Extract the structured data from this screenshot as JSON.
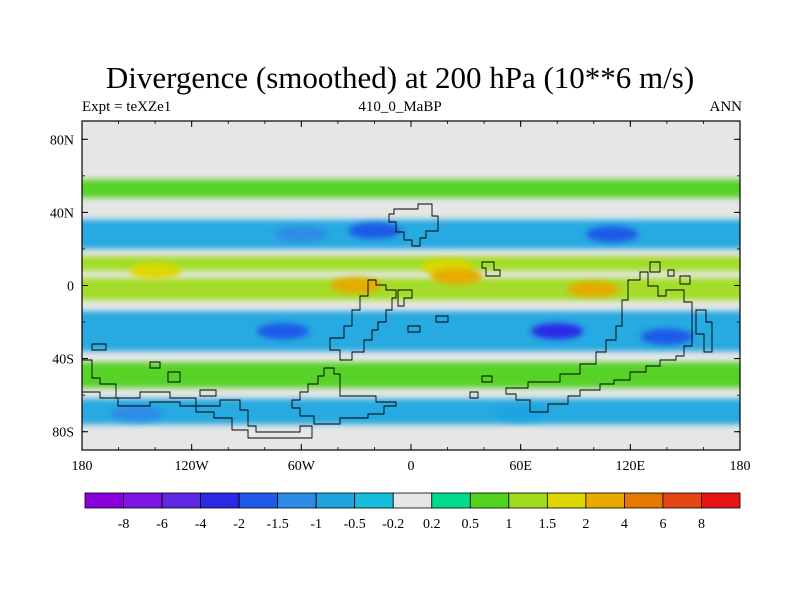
{
  "figure": {
    "title": "Divergence (smoothed) at 200 hPa (10**6 m/s)",
    "left_label": "Expt = teXZe1",
    "center_label": "410_0_MaBP",
    "right_label": "ANN"
  },
  "chart_data": {
    "type": "heatmap",
    "map_projection": "cylindrical equidistant",
    "field": "Divergence (smoothed)",
    "level": "200 hPa",
    "units": "10**6 m/s",
    "lon_range": [
      -180,
      180
    ],
    "lat_range": [
      -90,
      90
    ],
    "x_ticks": [
      {
        "value": -180,
        "label": "180"
      },
      {
        "value": -120,
        "label": "120W"
      },
      {
        "value": -60,
        "label": "60W"
      },
      {
        "value": 0,
        "label": "0"
      },
      {
        "value": 60,
        "label": "60E"
      },
      {
        "value": 120,
        "label": "120E"
      },
      {
        "value": 180,
        "label": "180"
      }
    ],
    "y_ticks": [
      {
        "value": 80,
        "label": "80N"
      },
      {
        "value": 40,
        "label": "40N"
      },
      {
        "value": 0,
        "label": "0"
      },
      {
        "value": -40,
        "label": "40S"
      },
      {
        "value": -80,
        "label": "80S"
      }
    ],
    "colorbar": {
      "colors": [
        "#8a00dc",
        "#7d14e2",
        "#5e28e4",
        "#2a2ae6",
        "#1e5ae8",
        "#2d8ce6",
        "#1ea5e0",
        "#14bedc",
        "#e6e6e6",
        "#00dc8c",
        "#50d21e",
        "#a0dc1e",
        "#dcd700",
        "#e6aa00",
        "#e67800",
        "#e64614",
        "#e61414"
      ],
      "labels": [
        "-8",
        "-6",
        "-4",
        "-2",
        "-1.5",
        "-1",
        "-0.5",
        "-0.2",
        "0.2",
        "0.5",
        "1",
        "1.5",
        "2",
        "4",
        "6",
        "8"
      ]
    },
    "bands": [
      {
        "lat_min": 48,
        "lat_max": 58,
        "value": 0.7,
        "note": "northern mid-latitude convergence-free band (green)"
      },
      {
        "lat_min": 20,
        "lat_max": 36,
        "value": -0.8,
        "note": "subtropical convergence band (blue)"
      },
      {
        "lat_min": 8,
        "lat_max": 16,
        "value": 1.2,
        "note": "northern tropical divergence band"
      },
      {
        "lat_min": -8,
        "lat_max": 4,
        "value": 1.0,
        "note": "equatorial divergence band"
      },
      {
        "lat_min": -36,
        "lat_max": -14,
        "value": -1.0,
        "note": "southern subtropical convergence"
      },
      {
        "lat_min": -56,
        "lat_max": -42,
        "value": 0.7,
        "note": "southern mid-latitude band"
      },
      {
        "lat_min": -76,
        "lat_max": -62,
        "value": -0.6,
        "note": "southern high-latitude band"
      }
    ],
    "extremes": [
      {
        "lon": 20,
        "lat": 10,
        "value": 1.8
      },
      {
        "lon": 25,
        "lat": 5,
        "value": 2.5
      },
      {
        "lon": 100,
        "lat": -2,
        "value": 2.2
      },
      {
        "lon": -30,
        "lat": 0,
        "value": 2.0
      },
      {
        "lon": -140,
        "lat": 8,
        "value": 1.6
      },
      {
        "lon": -20,
        "lat": 30,
        "value": -1.8
      },
      {
        "lon": -60,
        "lat": 28,
        "value": -1.5
      },
      {
        "lon": 110,
        "lat": 28,
        "value": -1.6
      },
      {
        "lon": -70,
        "lat": -25,
        "value": -1.8
      },
      {
        "lon": 80,
        "lat": -25,
        "value": -2.2
      },
      {
        "lon": 140,
        "lat": -28,
        "value": -1.6
      },
      {
        "lon": -150,
        "lat": -70,
        "value": -1.2
      },
      {
        "lon": 60,
        "lat": -70,
        "value": -1.0
      }
    ],
    "coastlines_description": "stepped paleogeographic continental outlines (410 Ma)"
  }
}
